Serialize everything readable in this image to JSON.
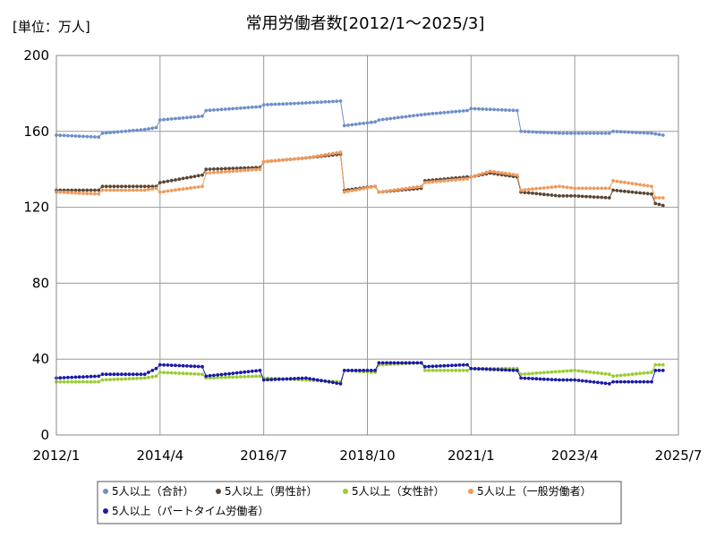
{
  "chart_data": {
    "type": "line",
    "title": "常用労働者数[2012/1～2025/3]",
    "unit_label": "[単位：万人]",
    "x_start": "2012-01",
    "x_end": "2025-03",
    "xlim": [
      "2012-01",
      "2025-07"
    ],
    "ylim": [
      0,
      200
    ],
    "y_ticks": [
      0,
      40,
      80,
      120,
      160,
      200
    ],
    "y_tick_labels": [
      "0",
      "40",
      "80",
      "120",
      "160",
      "200"
    ],
    "x_ticks": [
      "2012-01",
      "2014-04",
      "2016-07",
      "2018-10",
      "2021-01",
      "2023-04",
      "2025-07"
    ],
    "x_tick_labels": [
      "2012/1",
      "2014/4",
      "2016/7",
      "2018/10",
      "2021/1",
      "2023/4",
      "2025/7"
    ],
    "grid": true,
    "legend_position": "bottom",
    "series": [
      {
        "name": "5人以上（合計）",
        "color": "#6f8fc8",
        "anchors": [
          [
            "2012-01",
            158
          ],
          [
            "2012-12",
            157
          ],
          [
            "2013-01",
            159
          ],
          [
            "2013-12",
            161
          ],
          [
            "2014-03",
            162
          ],
          [
            "2014-04",
            166
          ],
          [
            "2015-03",
            168
          ],
          [
            "2015-04",
            171
          ],
          [
            "2016-06",
            173
          ],
          [
            "2016-07",
            174
          ],
          [
            "2017-06",
            175
          ],
          [
            "2018-03",
            176
          ],
          [
            "2018-04",
            163
          ],
          [
            "2018-12",
            165
          ],
          [
            "2019-01",
            166
          ],
          [
            "2020-01",
            169
          ],
          [
            "2020-12",
            171
          ],
          [
            "2021-01",
            172
          ],
          [
            "2022-01",
            171
          ],
          [
            "2022-02",
            160
          ],
          [
            "2023-01",
            159
          ],
          [
            "2023-04",
            159
          ],
          [
            "2024-01",
            159
          ],
          [
            "2024-02",
            160
          ],
          [
            "2024-12",
            159
          ],
          [
            "2025-03",
            158
          ]
        ]
      },
      {
        "name": "5人以上（男性計）",
        "color": "#5a4636",
        "anchors": [
          [
            "2012-01",
            129
          ],
          [
            "2012-12",
            129
          ],
          [
            "2013-01",
            131
          ],
          [
            "2013-12",
            131
          ],
          [
            "2014-03",
            131
          ],
          [
            "2014-04",
            133
          ],
          [
            "2015-03",
            137
          ],
          [
            "2015-04",
            140
          ],
          [
            "2016-06",
            141
          ],
          [
            "2016-07",
            144
          ],
          [
            "2017-06",
            146
          ],
          [
            "2018-03",
            148
          ],
          [
            "2018-04",
            129
          ],
          [
            "2018-12",
            131
          ],
          [
            "2019-01",
            128
          ],
          [
            "2019-12",
            130
          ],
          [
            "2020-01",
            134
          ],
          [
            "2020-12",
            136
          ],
          [
            "2021-01",
            136
          ],
          [
            "2021-06",
            138
          ],
          [
            "2022-01",
            136
          ],
          [
            "2022-02",
            128
          ],
          [
            "2022-12",
            126
          ],
          [
            "2023-04",
            126
          ],
          [
            "2024-01",
            125
          ],
          [
            "2024-02",
            129
          ],
          [
            "2024-12",
            127
          ],
          [
            "2025-01",
            122
          ],
          [
            "2025-03",
            121
          ]
        ]
      },
      {
        "name": "5人以上（女性計）",
        "color": "#9acd32",
        "anchors": [
          [
            "2012-01",
            28
          ],
          [
            "2012-12",
            28
          ],
          [
            "2013-01",
            29
          ],
          [
            "2013-12",
            30
          ],
          [
            "2014-03",
            31
          ],
          [
            "2014-04",
            33
          ],
          [
            "2015-03",
            32
          ],
          [
            "2015-04",
            30
          ],
          [
            "2016-06",
            31
          ],
          [
            "2016-07",
            30
          ],
          [
            "2017-06",
            29
          ],
          [
            "2018-03",
            28
          ],
          [
            "2018-04",
            34
          ],
          [
            "2018-12",
            33
          ],
          [
            "2019-01",
            37
          ],
          [
            "2019-12",
            38
          ],
          [
            "2020-01",
            34
          ],
          [
            "2020-12",
            34
          ],
          [
            "2021-01",
            35
          ],
          [
            "2022-01",
            35
          ],
          [
            "2022-02",
            32
          ],
          [
            "2023-04",
            34
          ],
          [
            "2024-01",
            32
          ],
          [
            "2024-02",
            31
          ],
          [
            "2024-12",
            33
          ],
          [
            "2025-01",
            37
          ],
          [
            "2025-03",
            37
          ]
        ]
      },
      {
        "name": "5人以上（一般労働者）",
        "color": "#ef9a5a",
        "anchors": [
          [
            "2012-01",
            128
          ],
          [
            "2012-12",
            127
          ],
          [
            "2013-01",
            129
          ],
          [
            "2013-12",
            129
          ],
          [
            "2014-03",
            130
          ],
          [
            "2014-04",
            128
          ],
          [
            "2015-03",
            131
          ],
          [
            "2015-04",
            138
          ],
          [
            "2016-06",
            140
          ],
          [
            "2016-07",
            144
          ],
          [
            "2017-06",
            146
          ],
          [
            "2018-03",
            149
          ],
          [
            "2018-04",
            128
          ],
          [
            "2018-12",
            131
          ],
          [
            "2019-01",
            128
          ],
          [
            "2019-12",
            131
          ],
          [
            "2020-01",
            133
          ],
          [
            "2020-12",
            135
          ],
          [
            "2021-01",
            136
          ],
          [
            "2021-06",
            139
          ],
          [
            "2022-01",
            137
          ],
          [
            "2022-02",
            129
          ],
          [
            "2022-12",
            131
          ],
          [
            "2023-04",
            130
          ],
          [
            "2024-01",
            130
          ],
          [
            "2024-02",
            134
          ],
          [
            "2024-12",
            131
          ],
          [
            "2025-01",
            125
          ],
          [
            "2025-03",
            125
          ]
        ]
      },
      {
        "name": "5人以上（パートタイム労働者）",
        "color": "#1a1aa6",
        "anchors": [
          [
            "2012-01",
            30
          ],
          [
            "2012-12",
            31
          ],
          [
            "2013-01",
            32
          ],
          [
            "2013-12",
            32
          ],
          [
            "2014-03",
            35
          ],
          [
            "2014-04",
            37
          ],
          [
            "2015-03",
            36
          ],
          [
            "2015-04",
            31
          ],
          [
            "2016-06",
            34
          ],
          [
            "2016-07",
            29
          ],
          [
            "2017-06",
            30
          ],
          [
            "2018-03",
            27
          ],
          [
            "2018-04",
            34
          ],
          [
            "2018-12",
            34
          ],
          [
            "2019-01",
            38
          ],
          [
            "2019-12",
            38
          ],
          [
            "2020-01",
            36
          ],
          [
            "2020-12",
            37
          ],
          [
            "2021-01",
            35
          ],
          [
            "2022-01",
            34
          ],
          [
            "2022-02",
            30
          ],
          [
            "2022-12",
            29
          ],
          [
            "2023-04",
            29
          ],
          [
            "2024-01",
            27
          ],
          [
            "2024-02",
            28
          ],
          [
            "2024-12",
            28
          ],
          [
            "2025-01",
            34
          ],
          [
            "2025-03",
            34
          ]
        ]
      }
    ]
  }
}
